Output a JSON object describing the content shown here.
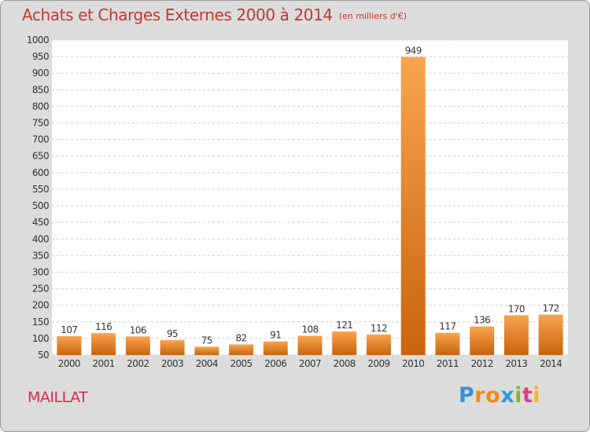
{
  "title": "Achats et Charges Externes 2000 à 2014",
  "unit_note": "(en milliers d'€)",
  "commune": "MAILLAT",
  "logo": {
    "letters": [
      "P",
      "r",
      "o",
      "x",
      "i",
      "t",
      "i"
    ],
    "colors": [
      "#3a8fd6",
      "#f08a1c",
      "#f08a1c",
      "#2a9bd8",
      "#7dbb2e",
      "#e23a8a",
      "#f0b81c"
    ]
  },
  "colors": {
    "background": "#dcdcdc",
    "plot_background": "#ffffff",
    "bar_light": "#f8a44f",
    "bar_dark": "#c9630d",
    "title": "#c0392b",
    "commune": "#e1264f"
  },
  "chart_data": {
    "type": "bar",
    "title": "Achats et Charges Externes 2000 à 2014",
    "subtitle": "(en milliers d'€)",
    "categories": [
      "2000",
      "2001",
      "2002",
      "2003",
      "2004",
      "2005",
      "2006",
      "2007",
      "2008",
      "2009",
      "2010",
      "2011",
      "2012",
      "2013",
      "2014"
    ],
    "values": [
      107,
      116,
      106,
      95,
      75,
      82,
      91,
      108,
      121,
      112,
      949,
      117,
      136,
      170,
      172
    ],
    "ylim": [
      50,
      1000
    ],
    "yticks": [
      50,
      100,
      150,
      200,
      250,
      300,
      350,
      400,
      450,
      500,
      550,
      600,
      650,
      700,
      750,
      800,
      850,
      900,
      950,
      1000
    ],
    "grid": true,
    "xlabel": "",
    "ylabel": ""
  }
}
